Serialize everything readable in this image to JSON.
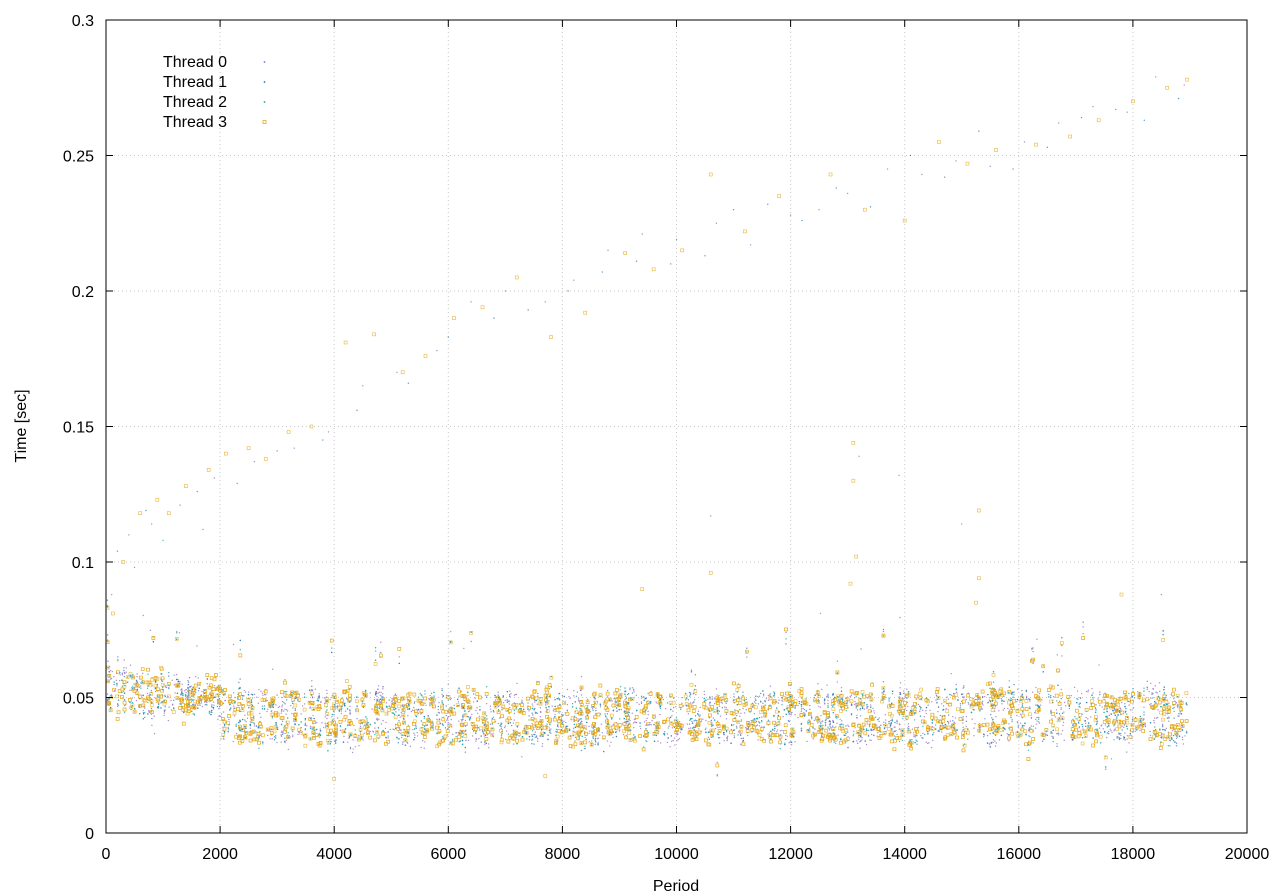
{
  "chart_data": {
    "type": "scatter",
    "title": "",
    "xlabel": "Period",
    "ylabel": "Time [sec]",
    "xlim": [
      0,
      20000
    ],
    "ylim": [
      0,
      0.3
    ],
    "xticks": [
      "0",
      "2000",
      "4000",
      "6000",
      "8000",
      "10000",
      "12000",
      "14000",
      "16000",
      "18000",
      "20000"
    ],
    "yticks": [
      "0",
      "0.05",
      "0.1",
      "0.15",
      "0.2",
      "0.25",
      "0.3"
    ],
    "grid": true,
    "legend_position": "top-left",
    "series": [
      {
        "name": "Thread 0",
        "color": "#9467bd",
        "marker": "dot"
      },
      {
        "name": "Thread 1",
        "color": "#1f77b4",
        "marker": "dot"
      },
      {
        "name": "Thread 2",
        "color": "#17a2a2",
        "marker": "dot"
      },
      {
        "name": "Thread 3",
        "color": "#e6a817",
        "marker": "open-square"
      }
    ],
    "x_extent": [
      0,
      18950
    ],
    "bands": {
      "lower_center": 0.038,
      "upper_center": 0.048,
      "band_spread": 0.004,
      "startup_level": 0.057,
      "startup_end_period": 2000
    },
    "outliers": [
      {
        "series": 3,
        "points": [
          [
            120,
            0.081
          ],
          [
            300,
            0.1
          ],
          [
            600,
            0.118
          ],
          [
            900,
            0.123
          ],
          [
            1100,
            0.118
          ],
          [
            1400,
            0.128
          ],
          [
            1800,
            0.134
          ],
          [
            2100,
            0.14
          ],
          [
            2500,
            0.142
          ],
          [
            2800,
            0.138
          ],
          [
            3200,
            0.148
          ],
          [
            3600,
            0.15
          ],
          [
            4200,
            0.181
          ],
          [
            4700,
            0.184
          ],
          [
            5200,
            0.17
          ],
          [
            5600,
            0.176
          ],
          [
            6100,
            0.19
          ],
          [
            6600,
            0.194
          ],
          [
            7200,
            0.205
          ],
          [
            7800,
            0.183
          ],
          [
            8400,
            0.192
          ],
          [
            9100,
            0.214
          ],
          [
            9600,
            0.208
          ],
          [
            10100,
            0.215
          ],
          [
            10600,
            0.243
          ],
          [
            11200,
            0.222
          ],
          [
            11800,
            0.235
          ],
          [
            12700,
            0.243
          ],
          [
            13300,
            0.23
          ],
          [
            14000,
            0.226
          ],
          [
            14600,
            0.255
          ],
          [
            15100,
            0.247
          ],
          [
            15600,
            0.252
          ],
          [
            16300,
            0.254
          ],
          [
            16900,
            0.257
          ],
          [
            17400,
            0.263
          ],
          [
            18000,
            0.27
          ],
          [
            18600,
            0.275
          ],
          [
            18950,
            0.278
          ],
          [
            13100,
            0.144
          ],
          [
            13100,
            0.13
          ],
          [
            13150,
            0.102
          ],
          [
            13050,
            0.092
          ],
          [
            15300,
            0.119
          ],
          [
            15300,
            0.094
          ],
          [
            15250,
            0.085
          ],
          [
            10600,
            0.096
          ],
          [
            9400,
            0.09
          ],
          [
            17800,
            0.088
          ],
          [
            4000,
            0.02
          ],
          [
            7700,
            0.021
          ]
        ]
      },
      {
        "series": 0,
        "points": [
          [
            400,
            0.11
          ],
          [
            800,
            0.114
          ],
          [
            1300,
            0.121
          ],
          [
            1900,
            0.131
          ],
          [
            2600,
            0.137
          ],
          [
            3300,
            0.142
          ],
          [
            3900,
            0.148
          ],
          [
            4500,
            0.165
          ],
          [
            5100,
            0.17
          ],
          [
            5800,
            0.178
          ],
          [
            6400,
            0.196
          ],
          [
            7000,
            0.2
          ],
          [
            7700,
            0.196
          ],
          [
            8200,
            0.204
          ],
          [
            8800,
            0.215
          ],
          [
            9400,
            0.221
          ],
          [
            10000,
            0.219
          ],
          [
            10700,
            0.225
          ],
          [
            11300,
            0.217
          ],
          [
            12000,
            0.228
          ],
          [
            12500,
            0.23
          ],
          [
            13000,
            0.236
          ],
          [
            13700,
            0.245
          ],
          [
            14300,
            0.243
          ],
          [
            14900,
            0.248
          ],
          [
            15500,
            0.246
          ],
          [
            16100,
            0.255
          ],
          [
            16700,
            0.262
          ],
          [
            17300,
            0.268
          ],
          [
            17900,
            0.266
          ],
          [
            18400,
            0.279
          ],
          [
            18900,
            0.276
          ],
          [
            13200,
            0.139
          ],
          [
            13900,
            0.132
          ],
          [
            10600,
            0.117
          ],
          [
            15000,
            0.114
          ]
        ]
      },
      {
        "series": 1,
        "points": [
          [
            200,
            0.104
          ],
          [
            700,
            0.119
          ],
          [
            1600,
            0.126
          ],
          [
            2300,
            0.129
          ],
          [
            3000,
            0.141
          ],
          [
            3800,
            0.145
          ],
          [
            4400,
            0.156
          ],
          [
            5300,
            0.166
          ],
          [
            6000,
            0.183
          ],
          [
            6800,
            0.19
          ],
          [
            7400,
            0.193
          ],
          [
            8100,
            0.2
          ],
          [
            8700,
            0.207
          ],
          [
            9300,
            0.211
          ],
          [
            9900,
            0.21
          ],
          [
            10500,
            0.213
          ],
          [
            11000,
            0.23
          ],
          [
            11600,
            0.232
          ],
          [
            12200,
            0.226
          ],
          [
            12800,
            0.238
          ],
          [
            13400,
            0.231
          ],
          [
            14100,
            0.25
          ],
          [
            14700,
            0.242
          ],
          [
            15300,
            0.259
          ],
          [
            15900,
            0.245
          ],
          [
            16500,
            0.253
          ],
          [
            17100,
            0.264
          ],
          [
            17700,
            0.267
          ],
          [
            18200,
            0.263
          ],
          [
            18800,
            0.271
          ]
        ]
      },
      {
        "series": 2,
        "points": [
          [
            100,
            0.088
          ],
          [
            500,
            0.098
          ],
          [
            1000,
            0.108
          ],
          [
            1700,
            0.112
          ],
          [
            18500,
            0.088
          ]
        ]
      }
    ]
  }
}
